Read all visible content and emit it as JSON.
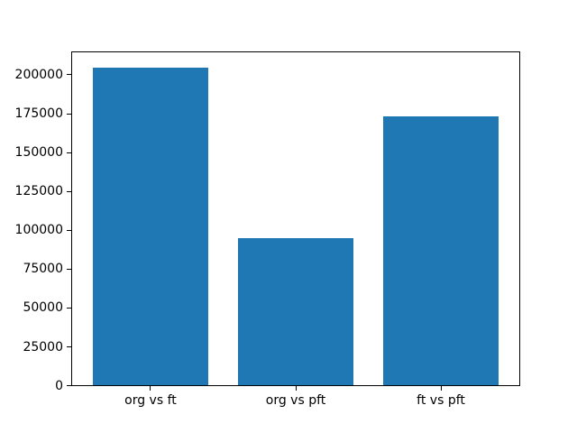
{
  "chart_data": {
    "type": "bar",
    "categories": [
      "org vs ft",
      "org vs pft",
      "ft vs pft"
    ],
    "values": [
      204500,
      94600,
      172800
    ],
    "x": [
      0,
      1,
      2
    ],
    "bar_width": 0.8,
    "xlim": [
      -0.54,
      2.54
    ],
    "ylim": [
      0,
      214725
    ],
    "yticks": [
      0,
      25000,
      50000,
      75000,
      100000,
      125000,
      150000,
      175000,
      200000
    ],
    "title": "",
    "xlabel": "",
    "ylabel": "",
    "bar_color": "#1f77b4",
    "background": "#ffffff",
    "grid": false,
    "legend": false
  }
}
